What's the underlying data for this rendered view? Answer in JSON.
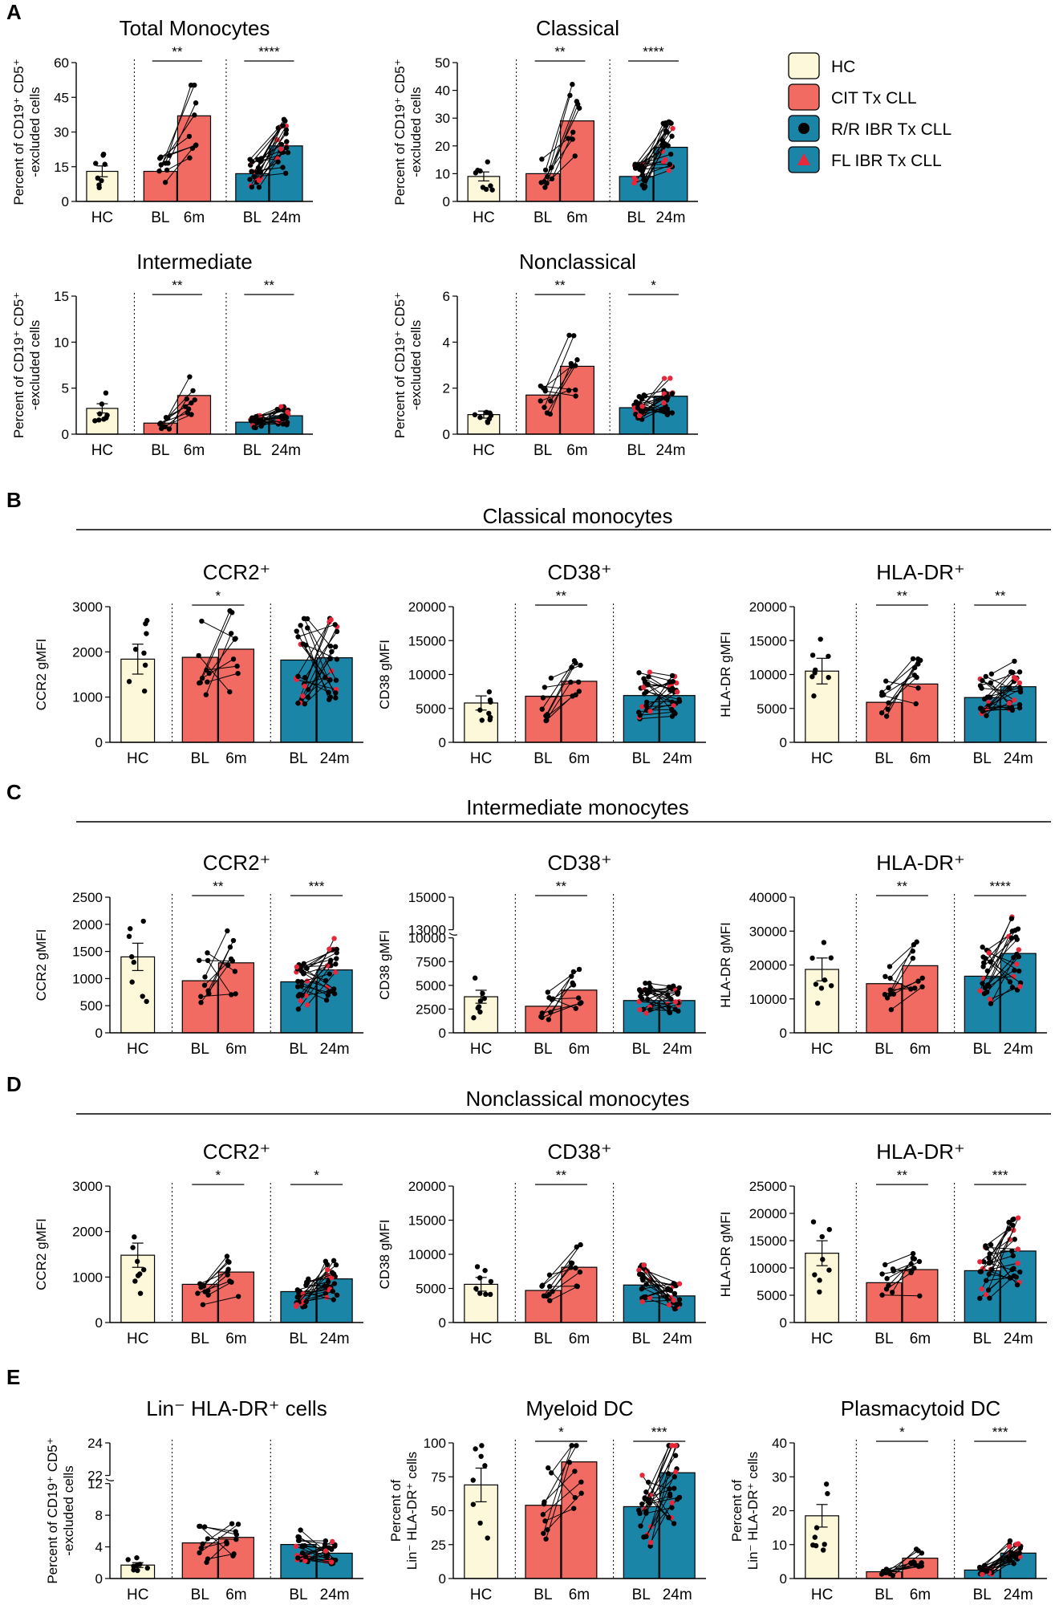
{
  "colors": {
    "HC": "#fcf8d9",
    "CIT": "#f26b63",
    "IBR": "#1b85a8",
    "RR_dot": "#000000",
    "FL_dot": "#e8273a"
  },
  "panels": [
    {
      "letter": "A"
    },
    {
      "letter": "B",
      "section_title": "Classical monocytes"
    },
    {
      "letter": "C",
      "section_title": "Intermediate monocytes"
    },
    {
      "letter": "D",
      "section_title": "Nonclassical monocytes"
    },
    {
      "letter": "E"
    }
  ],
  "legend": [
    {
      "label": "HC",
      "color": "#fcf8d9",
      "marker": "none"
    },
    {
      "label": "CIT Tx CLL",
      "color": "#f26b63",
      "marker": "none"
    },
    {
      "label": "R/R IBR Tx CLL",
      "color": "#1b85a8",
      "marker": "circle"
    },
    {
      "label": "FL IBR Tx CLL",
      "color": "#1b85a8",
      "marker": "triangle"
    }
  ],
  "chart_data": [
    {
      "id": "a1",
      "type": "bar",
      "title": "Total Monocytes",
      "ylabel": [
        "Percent of CD19⁺ CD5⁺",
        "-excluded cells"
      ],
      "categories": [
        "HC",
        "BL",
        "6m",
        "BL",
        "24m"
      ],
      "values": [
        13,
        13,
        37,
        12,
        24
      ],
      "ylim": [
        0,
        60
      ],
      "yticks": [
        0,
        15,
        30,
        45,
        60
      ],
      "ytick_labels": [
        "0",
        "15",
        "30",
        "45",
        "60"
      ],
      "significance": [
        {
          "pair": "CIT",
          "label": "**"
        },
        {
          "pair": "IBR",
          "label": "****"
        }
      ]
    },
    {
      "id": "a2",
      "type": "bar",
      "title": "Classical",
      "ylabel": [
        "Percent of CD19⁺ CD5⁺",
        "-excluded cells"
      ],
      "categories": [
        "HC",
        "BL",
        "6m",
        "BL",
        "24m"
      ],
      "values": [
        9,
        10,
        29,
        9,
        19.5
      ],
      "ylim": [
        0,
        50
      ],
      "yticks": [
        0,
        10,
        20,
        30,
        40,
        50
      ],
      "ytick_labels": [
        "0",
        "10",
        "20",
        "30",
        "40",
        "50"
      ],
      "significance": [
        {
          "pair": "CIT",
          "label": "**"
        },
        {
          "pair": "IBR",
          "label": "****"
        }
      ]
    },
    {
      "id": "a3",
      "type": "bar",
      "title": "Intermediate",
      "ylabel": [
        "Percent of CD19⁺ CD5⁺",
        "-excluded cells"
      ],
      "categories": [
        "HC",
        "BL",
        "6m",
        "BL",
        "24m"
      ],
      "values": [
        2.8,
        1.2,
        4.2,
        1.3,
        2.0
      ],
      "ylim": [
        0,
        15
      ],
      "yticks": [
        0,
        5,
        10,
        15
      ],
      "ytick_labels": [
        "0",
        "5",
        "10",
        "15"
      ],
      "significance": [
        {
          "pair": "CIT",
          "label": "**"
        },
        {
          "pair": "IBR",
          "label": "**"
        }
      ]
    },
    {
      "id": "a4",
      "type": "bar",
      "title": "Nonclassical",
      "ylabel": [
        "Percent of CD19⁺ CD5⁺",
        "-excluded cells"
      ],
      "categories": [
        "HC",
        "BL",
        "6m",
        "BL",
        "24m"
      ],
      "values": [
        0.85,
        1.7,
        2.95,
        1.15,
        1.65
      ],
      "ylim": [
        0,
        6
      ],
      "yticks": [
        0,
        2,
        4,
        6
      ],
      "ytick_labels": [
        "0",
        "2",
        "4",
        "6"
      ],
      "significance": [
        {
          "pair": "CIT",
          "label": "**"
        },
        {
          "pair": "IBR",
          "label": "*"
        }
      ]
    },
    {
      "id": "b1",
      "type": "bar",
      "title": "CCR2⁺",
      "ylabel": [
        "CCR2 gMFI"
      ],
      "categories": [
        "HC",
        "BL",
        "6m",
        "BL",
        "24m"
      ],
      "values": [
        1840,
        1880,
        2060,
        1820,
        1870
      ],
      "ylim": [
        0,
        3000
      ],
      "yticks": [
        0,
        1000,
        2000,
        3000
      ],
      "ytick_labels": [
        "0",
        "1000",
        "2000",
        "3000"
      ],
      "significance": [
        {
          "pair": "CIT",
          "label": "*"
        }
      ]
    },
    {
      "id": "b2",
      "type": "bar",
      "title": "CD38⁺",
      "ylabel": [
        "CD38 gMFI"
      ],
      "categories": [
        "HC",
        "BL",
        "6m",
        "BL",
        "24m"
      ],
      "values": [
        5800,
        6800,
        9000,
        6900,
        6900
      ],
      "ylim": [
        0,
        20000
      ],
      "yticks": [
        0,
        5000,
        10000,
        15000,
        20000
      ],
      "ytick_labels": [
        "0",
        "5000",
        "10000",
        "15000",
        "20000"
      ],
      "significance": [
        {
          "pair": "CIT",
          "label": "**"
        }
      ]
    },
    {
      "id": "b3",
      "type": "bar",
      "title": "HLA-DR⁺",
      "ylabel": [
        "HLA-DR gMFI"
      ],
      "categories": [
        "HC",
        "BL",
        "6m",
        "BL",
        "24m"
      ],
      "values": [
        10500,
        5900,
        8600,
        6600,
        8200
      ],
      "ylim": [
        0,
        20000
      ],
      "yticks": [
        0,
        5000,
        10000,
        15000,
        20000
      ],
      "ytick_labels": [
        "0",
        "5000",
        "10000",
        "15000",
        "20000"
      ],
      "significance": [
        {
          "pair": "CIT",
          "label": "**"
        },
        {
          "pair": "IBR",
          "label": "**"
        }
      ]
    },
    {
      "id": "c1",
      "type": "bar",
      "title": "CCR2⁺",
      "ylabel": [
        "CCR2 gMFI"
      ],
      "categories": [
        "HC",
        "BL",
        "6m",
        "BL",
        "24m"
      ],
      "values": [
        1400,
        960,
        1290,
        940,
        1160
      ],
      "ylim": [
        0,
        2500
      ],
      "yticks": [
        0,
        500,
        1000,
        1500,
        2000,
        2500
      ],
      "ytick_labels": [
        "0",
        "500",
        "1000",
        "1500",
        "2000",
        "2500"
      ],
      "significance": [
        {
          "pair": "CIT",
          "label": "**"
        },
        {
          "pair": "IBR",
          "label": "***"
        }
      ]
    },
    {
      "id": "c2",
      "type": "bar",
      "title": "CD38⁺",
      "ylabel": [
        "CD38 gMFI"
      ],
      "categories": [
        "HC",
        "BL",
        "6m",
        "BL",
        "24m"
      ],
      "values": [
        3800,
        2800,
        4500,
        3400,
        3400
      ],
      "ylim": [
        0,
        15000
      ],
      "axis_break": [
        10000,
        13000
      ],
      "yticks": [
        0,
        2500,
        5000,
        7500,
        10000,
        13000,
        15000
      ],
      "ytick_labels": [
        "0",
        "2500",
        "5000",
        "7500",
        "10000",
        "13000",
        "15000"
      ],
      "significance": [
        {
          "pair": "CIT",
          "label": "**"
        }
      ]
    },
    {
      "id": "c3",
      "type": "bar",
      "title": "HLA-DR⁺",
      "ylabel": [
        "HLA-DR gMFI"
      ],
      "categories": [
        "HC",
        "BL",
        "6m",
        "BL",
        "24m"
      ],
      "values": [
        18700,
        14500,
        19800,
        16700,
        23400
      ],
      "ylim": [
        0,
        40000
      ],
      "yticks": [
        0,
        10000,
        20000,
        30000,
        40000
      ],
      "ytick_labels": [
        "0",
        "10000",
        "20000",
        "30000",
        "40000"
      ],
      "significance": [
        {
          "pair": "CIT",
          "label": "**"
        },
        {
          "pair": "IBR",
          "label": "****"
        }
      ]
    },
    {
      "id": "d1",
      "type": "bar",
      "title": "CCR2⁺",
      "ylabel": [
        "CCR2 gMFI"
      ],
      "categories": [
        "HC",
        "BL",
        "6m",
        "BL",
        "24m"
      ],
      "values": [
        1480,
        840,
        1110,
        680,
        960
      ],
      "ylim": [
        0,
        3000
      ],
      "yticks": [
        0,
        1000,
        2000,
        3000
      ],
      "ytick_labels": [
        "0",
        "1000",
        "2000",
        "3000"
      ],
      "significance": [
        {
          "pair": "CIT",
          "label": "*"
        },
        {
          "pair": "IBR",
          "label": "*"
        }
      ]
    },
    {
      "id": "d2",
      "type": "bar",
      "title": "CD38⁺",
      "ylabel": [
        "CD38 gMFI"
      ],
      "categories": [
        "HC",
        "BL",
        "6m",
        "BL",
        "24m"
      ],
      "values": [
        5600,
        4700,
        8100,
        5500,
        3900
      ],
      "ylim": [
        0,
        20000
      ],
      "yticks": [
        0,
        5000,
        10000,
        15000,
        20000
      ],
      "ytick_labels": [
        "0",
        "5000",
        "10000",
        "15000",
        "20000"
      ],
      "significance": [
        {
          "pair": "CIT",
          "label": "**"
        }
      ]
    },
    {
      "id": "d3",
      "type": "bar",
      "title": "HLA-DR⁺",
      "ylabel": [
        "HLA-DR gMFI"
      ],
      "categories": [
        "HC",
        "BL",
        "6m",
        "BL",
        "24m"
      ],
      "values": [
        12700,
        7300,
        9700,
        9500,
        13100
      ],
      "ylim": [
        0,
        25000
      ],
      "yticks": [
        0,
        5000,
        10000,
        15000,
        20000,
        25000
      ],
      "ytick_labels": [
        "0",
        "5000",
        "10000",
        "15000",
        "20000",
        "25000"
      ],
      "significance": [
        {
          "pair": "CIT",
          "label": "**"
        },
        {
          "pair": "IBR",
          "label": "***"
        }
      ]
    },
    {
      "id": "e1",
      "type": "bar",
      "title": "Lin⁻ HLA-DR⁺ cells",
      "ylabel": [
        "Percent of CD19⁺ CD5⁺",
        "-excluded cells"
      ],
      "categories": [
        "HC",
        "BL",
        "6m",
        "BL",
        "24m"
      ],
      "values": [
        1.7,
        4.5,
        5.2,
        4.3,
        3.2
      ],
      "ylim": [
        0,
        24
      ],
      "axis_break": [
        12,
        22
      ],
      "yticks": [
        0,
        4,
        8,
        12,
        22,
        24
      ],
      "ytick_labels": [
        "0",
        "4",
        "8",
        "12",
        "22",
        "24"
      ],
      "significance": []
    },
    {
      "id": "e2",
      "type": "bar",
      "title": "Myeloid DC",
      "ylabel": [
        "Percent of",
        "Lin⁻ HLA-DR⁺ cells"
      ],
      "categories": [
        "HC",
        "BL",
        "6m",
        "BL",
        "24m"
      ],
      "values": [
        69,
        54,
        86,
        53,
        78
      ],
      "ylim": [
        0,
        100
      ],
      "yticks": [
        0,
        25,
        50,
        75,
        100
      ],
      "ytick_labels": [
        "0",
        "25",
        "50",
        "75",
        "100"
      ],
      "significance": [
        {
          "pair": "CIT",
          "label": "*"
        },
        {
          "pair": "IBR",
          "label": "***"
        }
      ]
    },
    {
      "id": "e3",
      "type": "bar",
      "title": "Plasmacytoid DC",
      "ylabel": [
        "Percent of",
        "Lin⁻ HLA-DR⁺ cells"
      ],
      "categories": [
        "HC",
        "BL",
        "6m",
        "BL",
        "24m"
      ],
      "values": [
        18.5,
        2,
        6,
        2.5,
        7.5
      ],
      "ylim": [
        0,
        40
      ],
      "yticks": [
        0,
        10,
        20,
        30,
        40
      ],
      "ytick_labels": [
        "0",
        "10",
        "20",
        "30",
        "40"
      ],
      "significance": [
        {
          "pair": "CIT",
          "label": "*"
        },
        {
          "pair": "IBR",
          "label": "***"
        }
      ]
    }
  ]
}
